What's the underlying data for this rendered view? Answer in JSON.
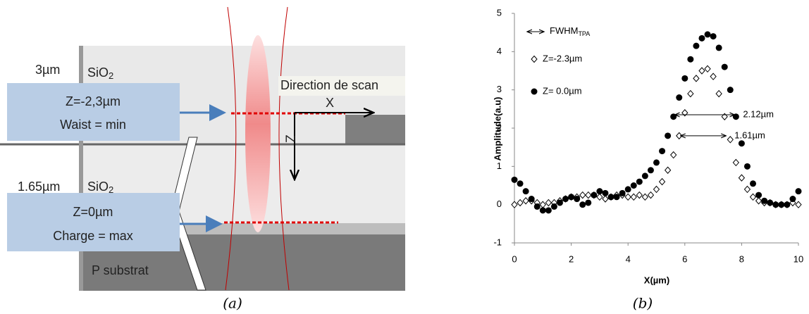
{
  "diagram": {
    "layer_top_thickness": "3µm",
    "layer_top_material": {
      "main": "SiO",
      "sub": "2"
    },
    "layer_mid_thickness": "1.65µm",
    "layer_mid_material": {
      "main": "SiO",
      "sub": "2"
    },
    "substrate": "P substrat",
    "scan_label": "Direction de scan",
    "axis_x": "X",
    "axis_z": "Z",
    "box_top": [
      "Z=-2,3µm",
      "Waist = min"
    ],
    "box_bottom": [
      "Z=0µm",
      "Charge = max"
    ]
  },
  "captions": [
    "(a)",
    "(b)"
  ],
  "chart_data": {
    "type": "scatter",
    "x_label": "X(µm)",
    "y_label": "Amplitude(a.u)",
    "xlim": [
      0,
      10
    ],
    "ylim": [
      -1,
      5
    ],
    "xticks": [
      0,
      2,
      4,
      6,
      8,
      10
    ],
    "yticks": [
      -1,
      0,
      1,
      2,
      3,
      4,
      5
    ],
    "legend_note": {
      "main": "FWHM",
      "sub": "TPA"
    },
    "x": [
      0,
      0.2,
      0.4,
      0.6,
      0.8,
      1,
      1.2,
      1.4,
      1.6,
      1.8,
      2,
      2.2,
      2.4,
      2.6,
      2.8,
      3,
      3.2,
      3.4,
      3.6,
      3.8,
      4,
      4.2,
      4.4,
      4.6,
      4.8,
      5,
      5.2,
      5.4,
      5.6,
      5.8,
      6,
      6.2,
      6.4,
      6.6,
      6.8,
      7,
      7.2,
      7.4,
      7.6,
      7.8,
      8,
      8.2,
      8.4,
      8.6,
      8.8,
      9,
      9.2,
      9.4,
      9.6,
      9.8,
      10
    ],
    "series": [
      {
        "name": "Z=-2.3µm",
        "marker": "diamond",
        "color": "#000000",
        "values": [
          0,
          0.05,
          0.1,
          0.1,
          0.05,
          0,
          0.05,
          0.05,
          0.1,
          0.15,
          0.2,
          0.2,
          0.25,
          0.25,
          0.25,
          0.2,
          0.15,
          0.2,
          0.25,
          0.25,
          0.2,
          0.2,
          0.25,
          0.2,
          0.25,
          0.4,
          0.6,
          0.9,
          1.3,
          1.8,
          2.4,
          2.9,
          3.3,
          3.5,
          3.55,
          3.35,
          2.9,
          2.3,
          1.7,
          1.1,
          0.7,
          0.4,
          0.2,
          0.1,
          0.05,
          0.05,
          0,
          0,
          0,
          0.05,
          0
        ]
      },
      {
        "name": "Z= 0.0µm",
        "marker": "circle",
        "color": "#000000",
        "values": [
          0.65,
          0.55,
          0.35,
          0.15,
          -0.05,
          -0.15,
          -0.15,
          -0.05,
          0.05,
          0.15,
          0.2,
          0.15,
          0,
          0.05,
          0.25,
          0.35,
          0.3,
          0.2,
          0.2,
          0.3,
          0.4,
          0.5,
          0.6,
          0.75,
          0.9,
          1.1,
          1.4,
          1.8,
          2.3,
          2.8,
          3.3,
          3.8,
          4.15,
          4.35,
          4.45,
          4.4,
          4.1,
          3.6,
          3,
          2.3,
          1.6,
          1,
          0.55,
          0.25,
          0.1,
          0.05,
          0,
          0,
          0,
          0.15,
          0.35
        ]
      }
    ],
    "annotations": [
      {
        "text": "2.12µm",
        "x": [
          5.65,
          7.75
        ],
        "y": 2.35
      },
      {
        "text": "1.61µm",
        "x": [
          5.85,
          7.45
        ],
        "y": 1.8
      }
    ]
  }
}
